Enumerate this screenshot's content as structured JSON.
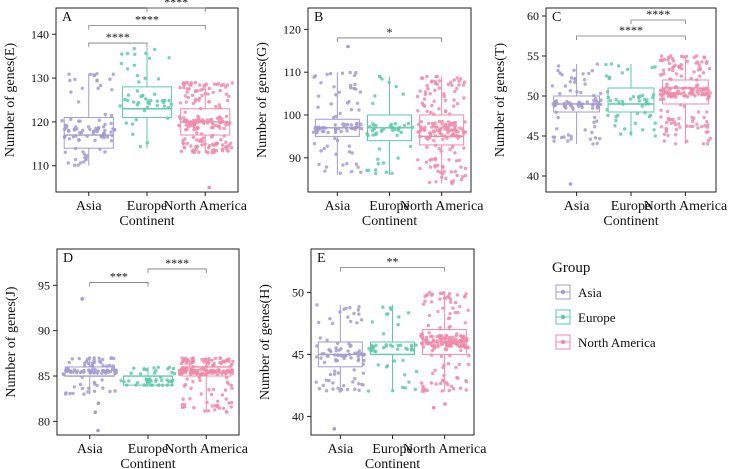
{
  "chart_data": [
    {
      "panel": "A",
      "type": "boxplot",
      "xlabel": "Continent",
      "ylabel": "Number of genes(E)",
      "categories": [
        "Asia",
        "Europe",
        "North America"
      ],
      "ylim": [
        104,
        146
      ],
      "yticks": [
        110,
        120,
        130,
        140
      ],
      "boxes": [
        {
          "group": "Asia",
          "q1": 114,
          "median": 117,
          "q3": 121,
          "whisker_low": 110,
          "whisker_high": 131,
          "n_points": 90,
          "outliers": []
        },
        {
          "group": "Europe",
          "q1": 121,
          "median": 123,
          "q3": 128,
          "whisker_low": 114,
          "whisker_high": 137,
          "n_points": 50,
          "outliers": []
        },
        {
          "group": "North America",
          "q1": 117,
          "median": 120,
          "q3": 123,
          "whisker_low": 113,
          "whisker_high": 129,
          "n_points": 180,
          "outliers": [
            105
          ]
        }
      ],
      "comparisons": [
        {
          "from": 1,
          "to": 2,
          "y": 146,
          "label": "****"
        },
        {
          "from": 0,
          "to": 2,
          "y": 142,
          "label": "****"
        },
        {
          "from": 0,
          "to": 1,
          "y": 138,
          "label": "****"
        }
      ]
    },
    {
      "panel": "B",
      "type": "boxplot",
      "xlabel": "Continent",
      "ylabel": "Number of genes(G)",
      "categories": [
        "Asia",
        "Europe",
        "North America"
      ],
      "ylim": [
        82,
        125
      ],
      "yticks": [
        90,
        100,
        110,
        120
      ],
      "boxes": [
        {
          "group": "Asia",
          "q1": 95,
          "median": 97,
          "q3": 99,
          "whisker_low": 86,
          "whisker_high": 110,
          "n_points": 90,
          "outliers": [
            116
          ]
        },
        {
          "group": "Europe",
          "q1": 94,
          "median": 97,
          "q3": 100,
          "whisker_low": 86,
          "whisker_high": 109,
          "n_points": 50,
          "outliers": []
        },
        {
          "group": "North America",
          "q1": 93,
          "median": 95,
          "q3": 100,
          "whisker_low": 84,
          "whisker_high": 109,
          "n_points": 180,
          "outliers": []
        }
      ],
      "comparisons": [
        {
          "from": 0,
          "to": 2,
          "y": 118,
          "label": "*"
        }
      ]
    },
    {
      "panel": "C",
      "type": "boxplot",
      "xlabel": "Continent",
      "ylabel": "Number of genes(T)",
      "categories": [
        "Asia",
        "Europe",
        "North America"
      ],
      "ylim": [
        38,
        61
      ],
      "yticks": [
        40,
        45,
        50,
        55,
        60
      ],
      "boxes": [
        {
          "group": "Asia",
          "q1": 48,
          "median": 49,
          "q3": 50,
          "whisker_low": 44,
          "whisker_high": 54,
          "n_points": 90,
          "outliers": [
            39
          ]
        },
        {
          "group": "Europe",
          "q1": 48,
          "median": 49,
          "q3": 51,
          "whisker_low": 45,
          "whisker_high": 54,
          "n_points": 50,
          "outliers": []
        },
        {
          "group": "North America",
          "q1": 49,
          "median": 51,
          "q3": 52,
          "whisker_low": 44,
          "whisker_high": 55,
          "n_points": 180,
          "outliers": []
        }
      ],
      "comparisons": [
        {
          "from": 1,
          "to": 2,
          "y": 59.5,
          "label": "****"
        },
        {
          "from": 0,
          "to": 2,
          "y": 57.5,
          "label": "****"
        }
      ]
    },
    {
      "panel": "D",
      "type": "boxplot",
      "xlabel": "Continent",
      "ylabel": "Number of genes(J)",
      "categories": [
        "Asia",
        "Europe",
        "North America"
      ],
      "ylim": [
        78.5,
        99
      ],
      "yticks": [
        80,
        85,
        90,
        95
      ],
      "boxes": [
        {
          "group": "Asia",
          "q1": 85,
          "median": 85,
          "q3": 86,
          "whisker_low": 83,
          "whisker_high": 87,
          "n_points": 90,
          "outliers": [
            93.5,
            82,
            81,
            79
          ]
        },
        {
          "group": "Europe",
          "q1": 84,
          "median": 85,
          "q3": 85,
          "whisker_low": 84,
          "whisker_high": 86,
          "n_points": 50,
          "outliers": []
        },
        {
          "group": "North America",
          "q1": 85,
          "median": 86,
          "q3": 86,
          "whisker_low": 81,
          "whisker_high": 87,
          "n_points": 180,
          "outliers": []
        }
      ],
      "comparisons": [
        {
          "from": 1,
          "to": 2,
          "y": 96.8,
          "label": "****"
        },
        {
          "from": 0,
          "to": 1,
          "y": 95.3,
          "label": "***"
        }
      ]
    },
    {
      "panel": "E",
      "type": "boxplot",
      "xlabel": "Continent",
      "ylabel": "Number of genes(H)",
      "categories": [
        "Asia",
        "Europe",
        "North America"
      ],
      "ylim": [
        38.5,
        53.5
      ],
      "yticks": [
        40,
        45,
        50
      ],
      "boxes": [
        {
          "group": "Asia",
          "q1": 44,
          "median": 45,
          "q3": 46,
          "whisker_low": 42,
          "whisker_high": 49,
          "n_points": 90,
          "outliers": [
            39
          ]
        },
        {
          "group": "Europe",
          "q1": 45,
          "median": 45,
          "q3": 46,
          "whisker_low": 42,
          "whisker_high": 49,
          "n_points": 50,
          "outliers": []
        },
        {
          "group": "North America",
          "q1": 45,
          "median": 46,
          "q3": 47,
          "whisker_low": 42,
          "whisker_high": 50,
          "n_points": 180,
          "outliers": [
            41,
            40.7
          ]
        }
      ],
      "comparisons": [
        {
          "from": 0,
          "to": 2,
          "y": 52,
          "label": "**"
        }
      ]
    }
  ],
  "legend": {
    "title": "Group",
    "entries": [
      {
        "label": "Asia",
        "color": "#a49ad0"
      },
      {
        "label": "Europe",
        "color": "#5ecba5"
      },
      {
        "label": "North America",
        "color": "#f08aa8"
      }
    ]
  }
}
